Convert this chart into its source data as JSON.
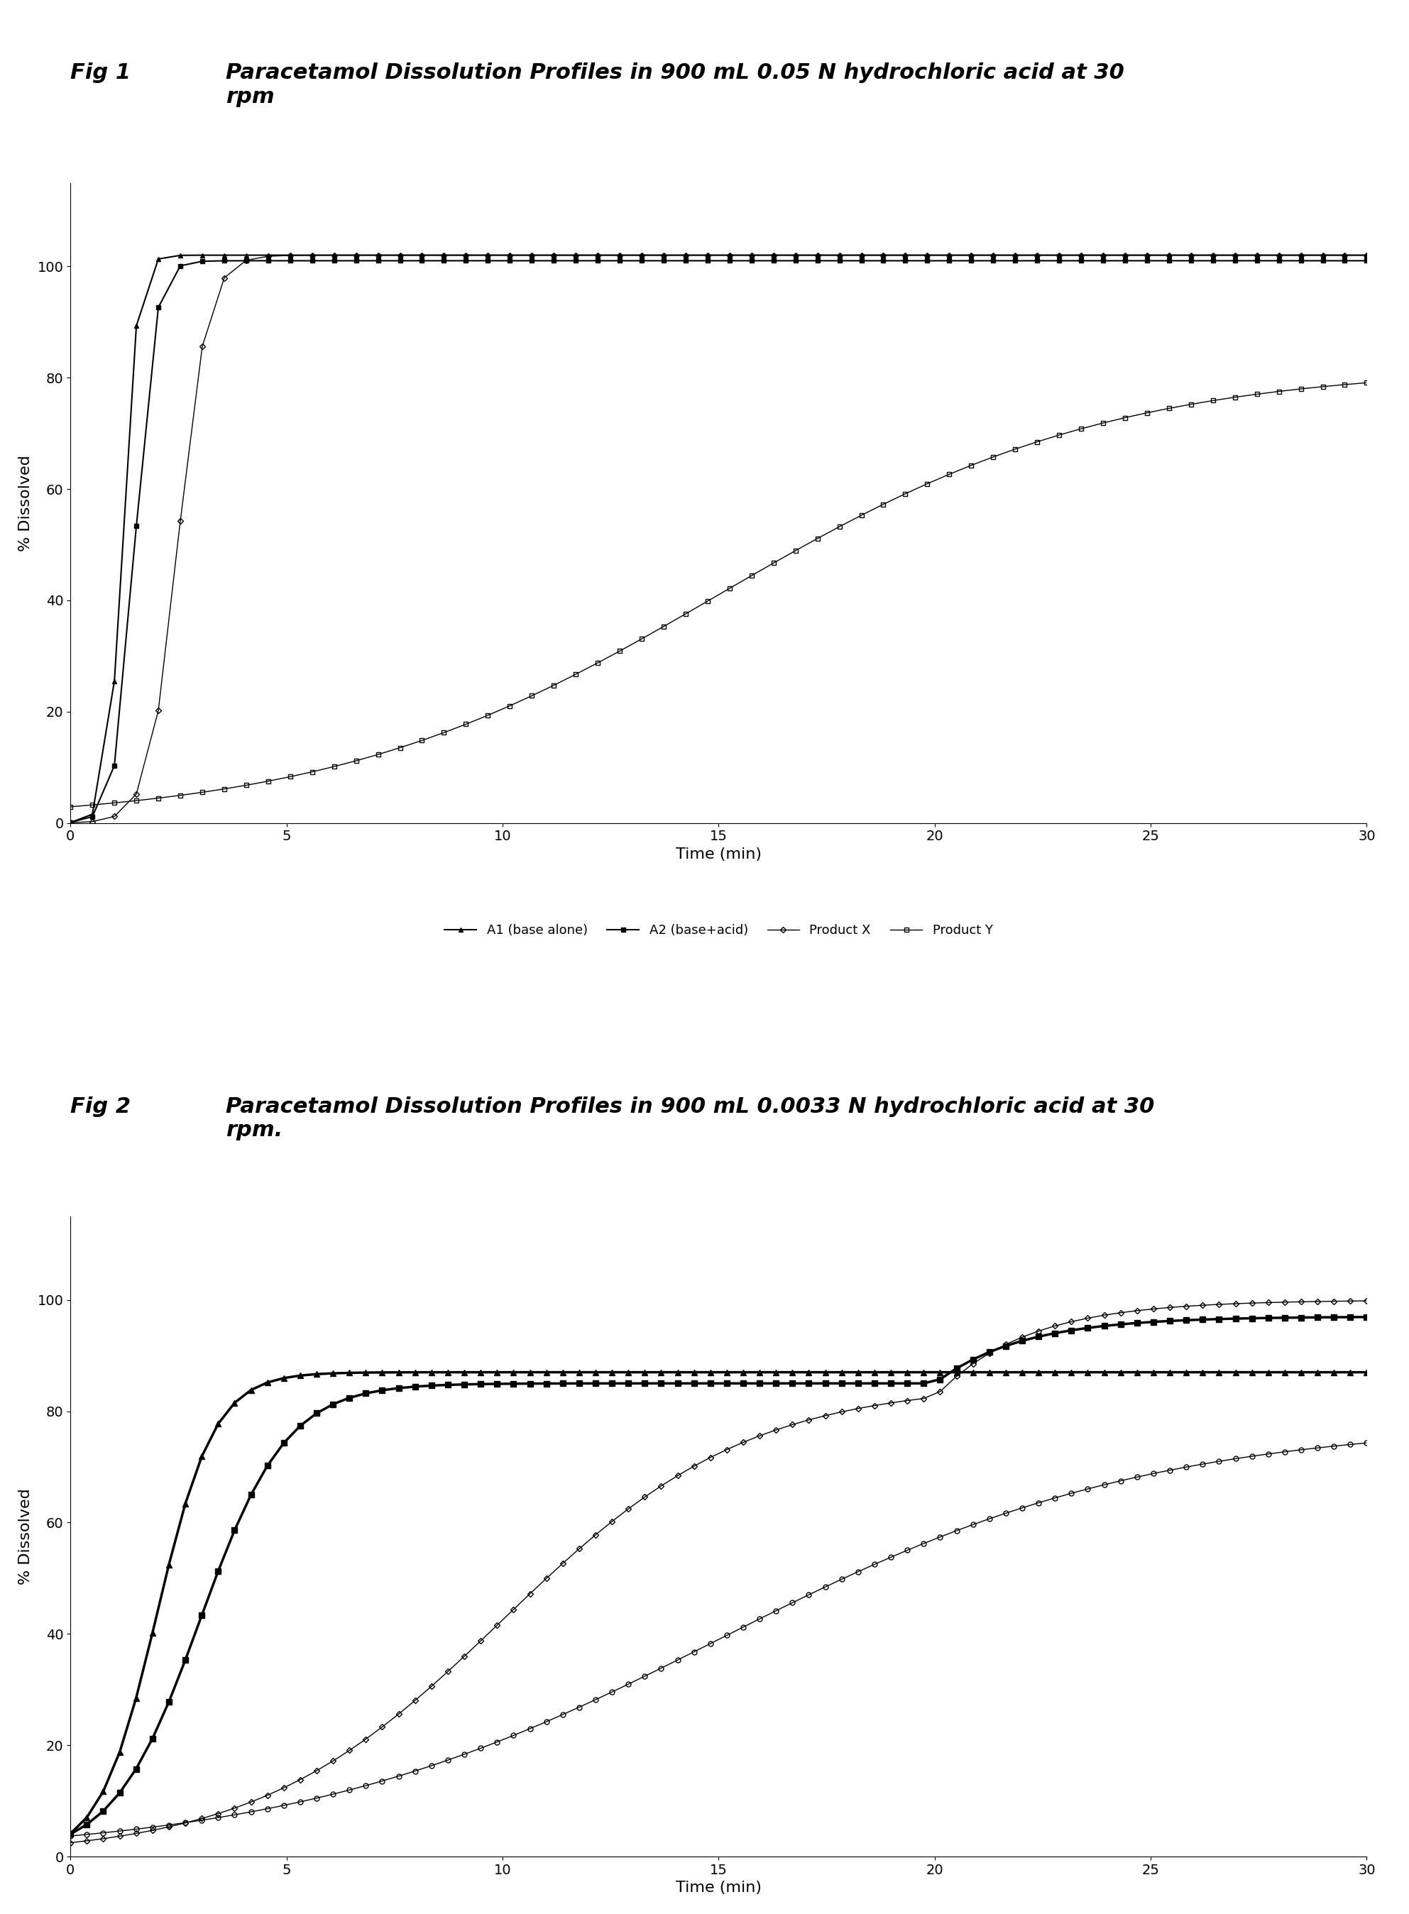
{
  "fig1_title_label": "Fig 1",
  "fig1_title_text": "Paracetamol Dissolution Profiles in 900 mL 0.05 N hydrochloric acid at 30\nrpm",
  "fig2_title_label": "Fig 2",
  "fig2_title_text": "Paracetamol Dissolution Profiles in 900 mL 0.0033 N hydrochloric acid at 30\nrpm.",
  "xlabel": "Time (min)",
  "ylabel": "% Dissolved",
  "xlim": [
    0,
    30
  ],
  "ylim": [
    0,
    120
  ],
  "yticks": [
    0,
    20,
    40,
    60,
    80,
    100
  ],
  "xticks": [
    0,
    5,
    10,
    15,
    20,
    25,
    30
  ],
  "background_color": "#ffffff"
}
